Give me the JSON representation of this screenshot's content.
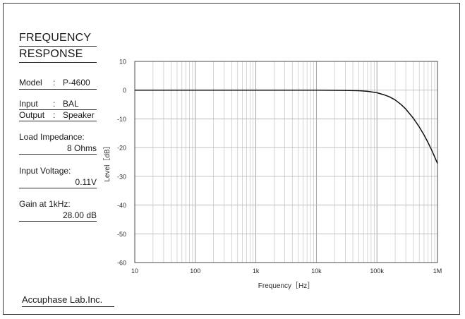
{
  "sidebar": {
    "title_line1": "FREQUENCY",
    "title_line2": "RESPONSE",
    "model_label": "Model",
    "model_sep": ":",
    "model_value": "P-4600",
    "input_label": "Input",
    "input_sep": ":",
    "input_value": "BAL",
    "output_label": "Output",
    "output_sep": ":",
    "output_value": "Speaker",
    "load_label": "Load Impedance:",
    "load_value": "8 Ohms",
    "voltage_label": "Input Voltage:",
    "voltage_value": "0.11V",
    "gain_label": "Gain at 1kHz:",
    "gain_value": "28.00 dB"
  },
  "footer": {
    "brand": "Accuphase Lab.Inc."
  },
  "chart_data": {
    "type": "line",
    "title": "",
    "xlabel": "Frequency［Hz］",
    "ylabel": "Level［dB］",
    "xscale": "log",
    "xlim": [
      10,
      1000000
    ],
    "ylim": [
      -60,
      10
    ],
    "x_ticks": [
      10,
      100,
      1000,
      10000,
      100000,
      1000000
    ],
    "x_tick_labels": [
      "10",
      "100",
      "1k",
      "10k",
      "100k",
      "1M"
    ],
    "y_ticks": [
      10,
      0,
      -10,
      -20,
      -30,
      -40,
      -50,
      -60
    ],
    "y_tick_labels": [
      "10",
      "0",
      "-10",
      "-20",
      "-30",
      "-40",
      "-50",
      "-60"
    ],
    "grid": true,
    "line_color": "#111111",
    "series": [
      {
        "x": [
          10,
          100,
          1000,
          10000,
          30000,
          50000,
          70000,
          100000,
          130000,
          160000,
          200000,
          250000,
          300000,
          400000,
          500000,
          600000,
          700000,
          800000,
          1000000
        ],
        "y": [
          0,
          0,
          0,
          0,
          -0.1,
          -0.2,
          -0.4,
          -0.9,
          -1.6,
          -2.3,
          -3.4,
          -5.0,
          -6.6,
          -9.8,
          -12.8,
          -15.6,
          -18.3,
          -20.8,
          -25.5
        ]
      }
    ]
  }
}
